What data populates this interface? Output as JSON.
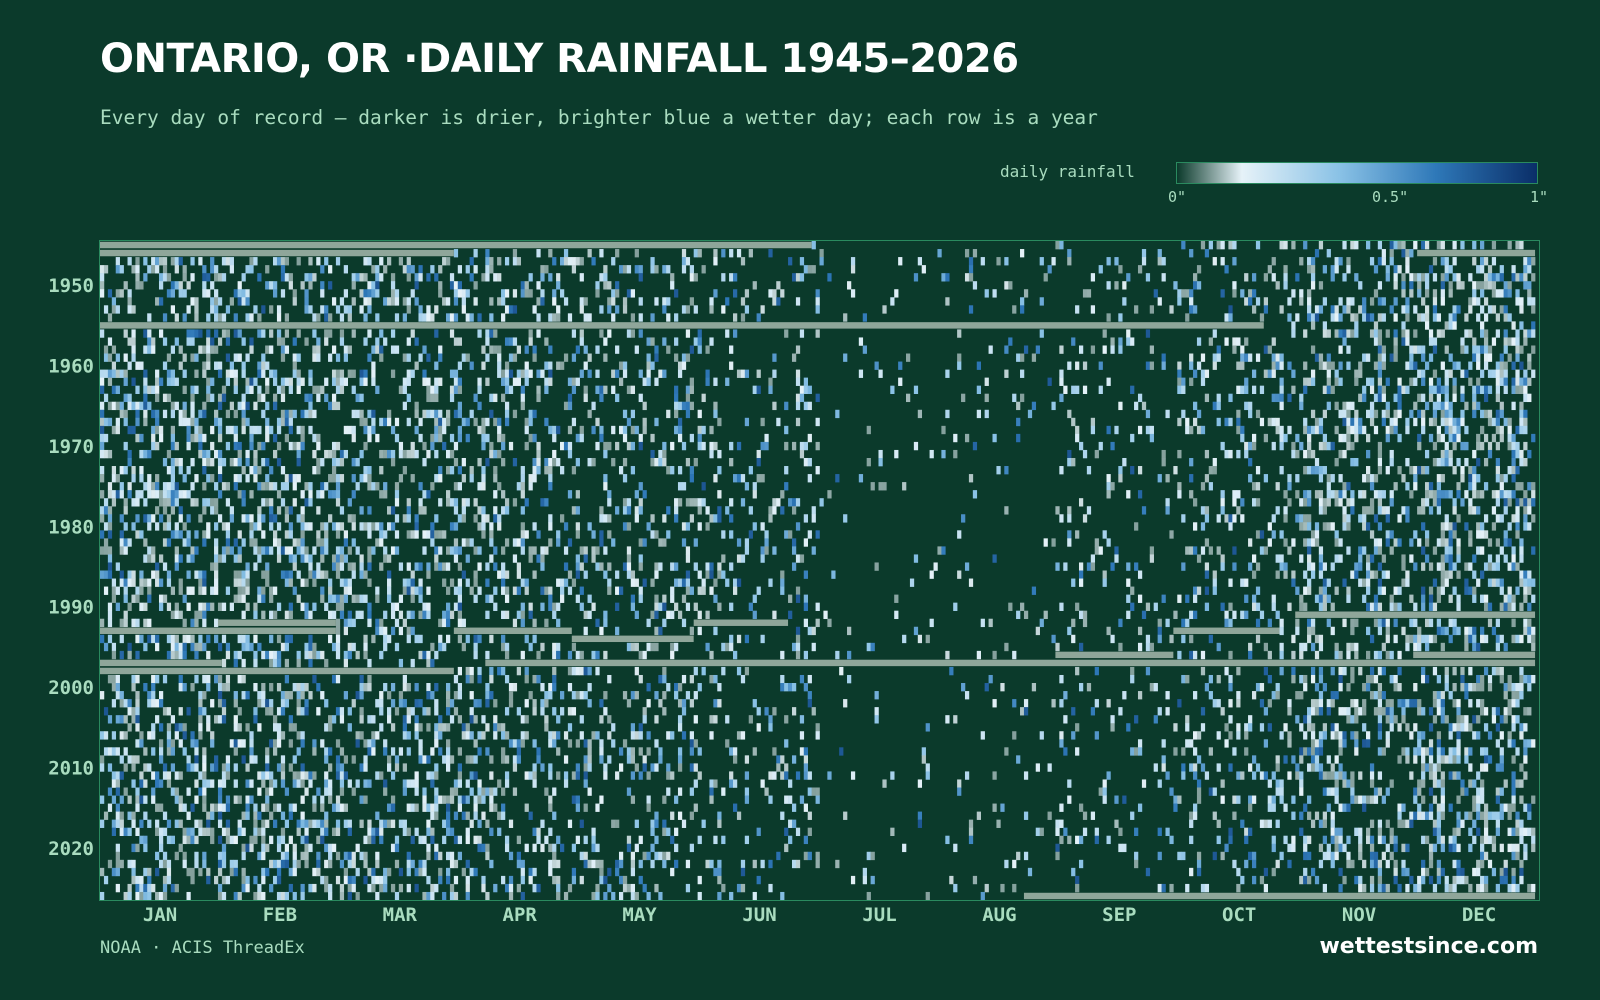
{
  "chart_data": {
    "type": "heatmap",
    "title": "ONTARIO, OR ·DAILY RAINFALL 1945–2026",
    "subtitle": "Every day of record — darker is drier, brighter blue a wetter day; each row is a year",
    "legend": {
      "label": "daily rainfall",
      "ticks": [
        "0\"",
        "0.5\"",
        "1\""
      ],
      "range": [
        0,
        1
      ],
      "placement": "top-right",
      "colors": [
        "#0b3a2b",
        "#e6f2f8",
        "#8ac2e6",
        "#2e78b8",
        "#0a2e68"
      ]
    },
    "x": {
      "kind": "day of year",
      "range": [
        1,
        366
      ],
      "tick_labels": [
        "JAN",
        "FEB",
        "MAR",
        "APR",
        "MAY",
        "JUN",
        "JUL",
        "AUG",
        "SEP",
        "OCT",
        "NOV",
        "DEC"
      ]
    },
    "y": {
      "kind": "year",
      "range": [
        1945,
        2026
      ],
      "tick_values": [
        1950,
        1960,
        1970,
        1980,
        1990,
        2000,
        2010,
        2020
      ]
    },
    "missing_color": "#8fa69a",
    "missing_periods": [
      {
        "year": 1945,
        "from_day": 1,
        "to_day": 181
      },
      {
        "year": 1946,
        "from_day": 1,
        "to_day": 90
      },
      {
        "year": 1946,
        "from_day": 336,
        "to_day": 365
      },
      {
        "year": 1955,
        "from_day": 1,
        "to_day": 296
      },
      {
        "year": 1991,
        "from_day": 305,
        "to_day": 365
      },
      {
        "year": 1992,
        "from_day": 31,
        "to_day": 60
      },
      {
        "year": 1992,
        "from_day": 152,
        "to_day": 175
      },
      {
        "year": 1993,
        "from_day": 1,
        "to_day": 60
      },
      {
        "year": 1993,
        "from_day": 91,
        "to_day": 120
      },
      {
        "year": 1993,
        "from_day": 274,
        "to_day": 300
      },
      {
        "year": 1994,
        "from_day": 121,
        "to_day": 151
      },
      {
        "year": 1996,
        "from_day": 244,
        "to_day": 273
      },
      {
        "year": 1996,
        "from_day": 335,
        "to_day": 365
      },
      {
        "year": 1997,
        "from_day": 1,
        "to_day": 31
      },
      {
        "year": 1997,
        "from_day": 99,
        "to_day": 365
      },
      {
        "year": 1998,
        "from_day": 1,
        "to_day": 90
      },
      {
        "year": 2026,
        "from_day": 236,
        "to_day": 365
      }
    ],
    "seasonal_wet_day_probability": [
      0.4,
      0.38,
      0.33,
      0.28,
      0.24,
      0.16,
      0.04,
      0.06,
      0.12,
      0.22,
      0.38,
      0.42
    ]
  },
  "footer": {
    "source": "NOAA · ACIS ThreadEx",
    "site": "wettestsince.com"
  }
}
